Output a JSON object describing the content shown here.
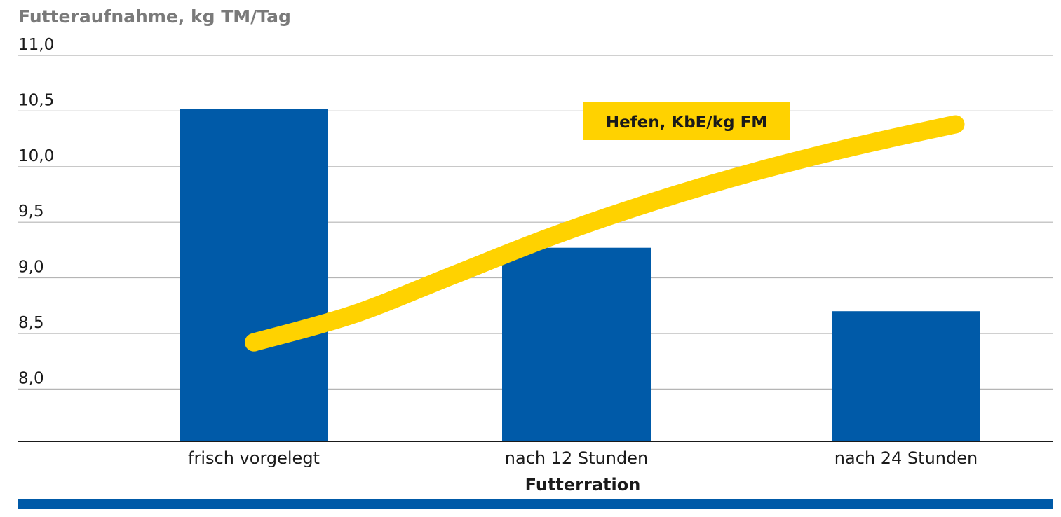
{
  "colors": {
    "bar": "#005aa8",
    "line": "#ffd200",
    "grid": "#b5b5b5",
    "axis": "#1a1a1a",
    "footer_band": "#005aa8"
  },
  "chart_data": {
    "type": "bar",
    "ylabel": "Futteraufnahme, kg TM/Tag",
    "xlabel": "Futterration",
    "categories": [
      "frisch vorgelegt",
      "nach 12 Stunden",
      "nach 24 Stunden"
    ],
    "values": [
      10.52,
      9.27,
      8.7
    ],
    "ylim": [
      7.53,
      11.0
    ],
    "yticks": [
      {
        "value": 11.0,
        "label": "11,0"
      },
      {
        "value": 10.5,
        "label": "10,5"
      },
      {
        "value": 10.0,
        "label": "10,0"
      },
      {
        "value": 9.5,
        "label": "9,5"
      },
      {
        "value": 9.0,
        "label": "9,0"
      },
      {
        "value": 8.5,
        "label": "8,5"
      },
      {
        "value": 8.0,
        "label": "8,0"
      }
    ],
    "grid": true,
    "overlay_line": {
      "name": "Hefen, KbE/kg FM",
      "shape": "increasing curve",
      "x_start_category": 0,
      "x_end_category": 2.15,
      "y_values_on_left_axis": [
        8.42,
        8.67,
        9.02,
        9.37,
        9.68,
        9.95,
        10.18,
        10.38
      ]
    }
  }
}
